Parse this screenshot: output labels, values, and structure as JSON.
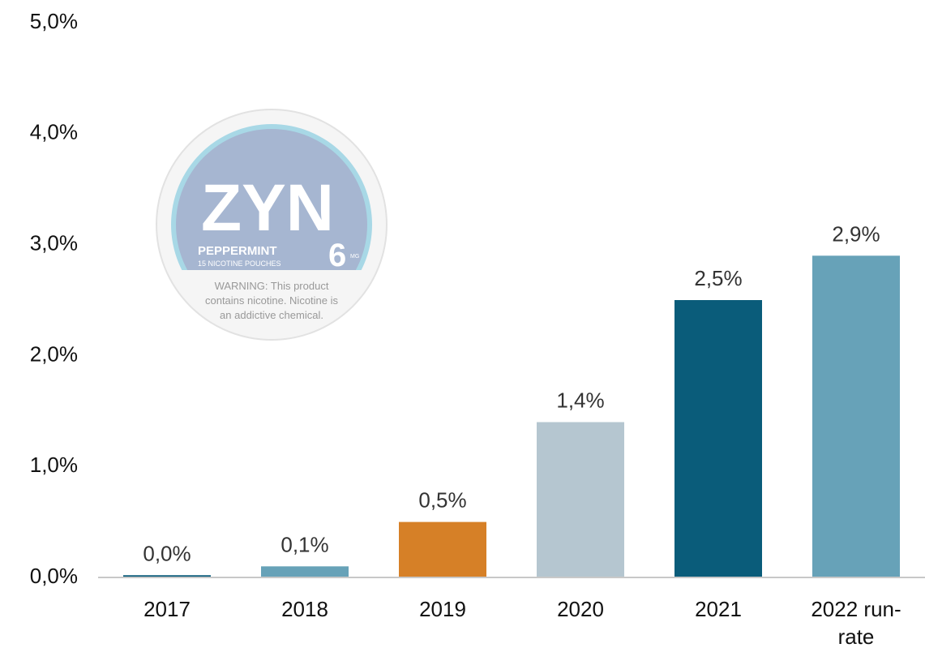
{
  "chart_data": {
    "type": "bar",
    "categories": [
      "2017",
      "2018",
      "2019",
      "2020",
      "2021",
      "2022 run-rate"
    ],
    "values": [
      0.02,
      0.1,
      0.5,
      1.4,
      2.5,
      2.9
    ],
    "value_labels": [
      "0,0%",
      "0,1%",
      "0,5%",
      "1,4%",
      "2,5%",
      "2,9%"
    ],
    "colors": [
      "#0a5c7a",
      "#67a2b8",
      "#d68027",
      "#b5c6d0",
      "#0a5c7a",
      "#67a2b8"
    ],
    "ylim": [
      0,
      5
    ],
    "yticks": [
      {
        "value": 0,
        "label": "0,0%"
      },
      {
        "value": 1,
        "label": "1,0%"
      },
      {
        "value": 2,
        "label": "2,0%"
      },
      {
        "value": 3,
        "label": "3,0%"
      },
      {
        "value": 4,
        "label": "4,0%"
      },
      {
        "value": 5,
        "label": "5,0%"
      }
    ],
    "grid": false
  },
  "image": {
    "brand": "ZYN",
    "flavor": "PEPPERMINT",
    "count": "15 NICOTINE POUCHES",
    "strength": "6",
    "unit": "MG",
    "warning": [
      "WARNING: This product",
      "contains nicotine. Nicotine is",
      "an addictive chemical."
    ]
  }
}
